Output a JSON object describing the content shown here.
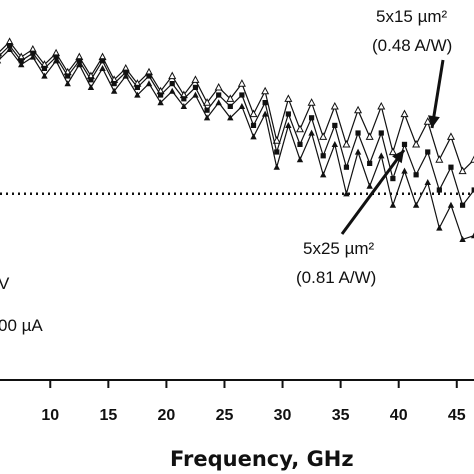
{
  "chart_data": {
    "type": "line",
    "xlabel": "Frequency, GHz",
    "xlim": [
      5.5,
      47
    ],
    "ylim": [
      0,
      1
    ],
    "x_ticks": [
      "10",
      "15",
      "20",
      "25",
      "30",
      "35",
      "40",
      "45"
    ],
    "reference_level": 0.49,
    "grid": false,
    "series": [
      {
        "name": "5x15 µm²",
        "marker": "open-triangle",
        "points": [
          [
            5.5,
            0.86
          ],
          [
            6.5,
            0.89
          ],
          [
            7.5,
            0.85
          ],
          [
            8.5,
            0.87
          ],
          [
            9.5,
            0.83
          ],
          [
            10.5,
            0.86
          ],
          [
            11.5,
            0.81
          ],
          [
            12.5,
            0.85
          ],
          [
            13.5,
            0.8
          ],
          [
            14.5,
            0.85
          ],
          [
            15.5,
            0.79
          ],
          [
            16.5,
            0.82
          ],
          [
            17.5,
            0.78
          ],
          [
            18.5,
            0.81
          ],
          [
            19.5,
            0.76
          ],
          [
            20.5,
            0.8
          ],
          [
            21.5,
            0.75
          ],
          [
            22.5,
            0.79
          ],
          [
            23.5,
            0.73
          ],
          [
            24.5,
            0.77
          ],
          [
            25.5,
            0.74
          ],
          [
            26.5,
            0.78
          ],
          [
            27.5,
            0.7
          ],
          [
            28.5,
            0.76
          ],
          [
            29.5,
            0.63
          ],
          [
            30.5,
            0.74
          ],
          [
            31.5,
            0.66
          ],
          [
            32.5,
            0.73
          ],
          [
            33.5,
            0.64
          ],
          [
            34.5,
            0.72
          ],
          [
            35.5,
            0.62
          ],
          [
            36.5,
            0.71
          ],
          [
            37.5,
            0.64
          ],
          [
            38.5,
            0.72
          ],
          [
            39.5,
            0.6
          ],
          [
            40.5,
            0.7
          ],
          [
            41.5,
            0.62
          ],
          [
            42.5,
            0.68
          ],
          [
            43.5,
            0.58
          ],
          [
            44.5,
            0.64
          ],
          [
            45.5,
            0.55
          ],
          [
            46.5,
            0.58
          ]
        ]
      },
      {
        "name": "",
        "marker": "filled-square",
        "points": [
          [
            5.5,
            0.85
          ],
          [
            6.5,
            0.88
          ],
          [
            7.5,
            0.84
          ],
          [
            8.5,
            0.86
          ],
          [
            9.5,
            0.82
          ],
          [
            10.5,
            0.85
          ],
          [
            11.5,
            0.8
          ],
          [
            12.5,
            0.84
          ],
          [
            13.5,
            0.79
          ],
          [
            14.5,
            0.84
          ],
          [
            15.5,
            0.78
          ],
          [
            16.5,
            0.81
          ],
          [
            17.5,
            0.77
          ],
          [
            18.5,
            0.8
          ],
          [
            19.5,
            0.75
          ],
          [
            20.5,
            0.78
          ],
          [
            21.5,
            0.74
          ],
          [
            22.5,
            0.77
          ],
          [
            23.5,
            0.71
          ],
          [
            24.5,
            0.75
          ],
          [
            25.5,
            0.72
          ],
          [
            26.5,
            0.75
          ],
          [
            27.5,
            0.67
          ],
          [
            28.5,
            0.73
          ],
          [
            29.5,
            0.6
          ],
          [
            30.5,
            0.7
          ],
          [
            31.5,
            0.62
          ],
          [
            32.5,
            0.69
          ],
          [
            33.5,
            0.59
          ],
          [
            34.5,
            0.67
          ],
          [
            35.5,
            0.56
          ],
          [
            36.5,
            0.65
          ],
          [
            37.5,
            0.57
          ],
          [
            38.5,
            0.65
          ],
          [
            39.5,
            0.53
          ],
          [
            40.5,
            0.62
          ],
          [
            41.5,
            0.54
          ],
          [
            42.5,
            0.6
          ],
          [
            43.5,
            0.5
          ],
          [
            44.5,
            0.56
          ],
          [
            45.5,
            0.46
          ],
          [
            46.5,
            0.5
          ]
        ]
      },
      {
        "name": "5x25 µm²",
        "marker": "filled-triangle",
        "points": [
          [
            5.5,
            0.84
          ],
          [
            6.5,
            0.87
          ],
          [
            7.5,
            0.83
          ],
          [
            8.5,
            0.85
          ],
          [
            9.5,
            0.8
          ],
          [
            10.5,
            0.84
          ],
          [
            11.5,
            0.78
          ],
          [
            12.5,
            0.83
          ],
          [
            13.5,
            0.77
          ],
          [
            14.5,
            0.82
          ],
          [
            15.5,
            0.76
          ],
          [
            16.5,
            0.8
          ],
          [
            17.5,
            0.75
          ],
          [
            18.5,
            0.78
          ],
          [
            19.5,
            0.73
          ],
          [
            20.5,
            0.76
          ],
          [
            21.5,
            0.72
          ],
          [
            22.5,
            0.75
          ],
          [
            23.5,
            0.69
          ],
          [
            24.5,
            0.73
          ],
          [
            25.5,
            0.69
          ],
          [
            26.5,
            0.72
          ],
          [
            27.5,
            0.64
          ],
          [
            28.5,
            0.7
          ],
          [
            29.5,
            0.56
          ],
          [
            30.5,
            0.67
          ],
          [
            31.5,
            0.58
          ],
          [
            32.5,
            0.65
          ],
          [
            33.5,
            0.54
          ],
          [
            34.5,
            0.62
          ],
          [
            35.5,
            0.49
          ],
          [
            36.5,
            0.6
          ],
          [
            37.5,
            0.51
          ],
          [
            38.5,
            0.59
          ],
          [
            39.5,
            0.46
          ],
          [
            40.5,
            0.55
          ],
          [
            41.5,
            0.46
          ],
          [
            42.5,
            0.52
          ],
          [
            43.5,
            0.4
          ],
          [
            44.5,
            0.46
          ],
          [
            45.5,
            0.37
          ],
          [
            46.5,
            0.38
          ]
        ]
      }
    ],
    "annotations": [
      {
        "id": "top",
        "line1": "5x15 µm²",
        "line2": "(0.48 A/W)"
      },
      {
        "id": "bottom",
        "line1": "5x25 µm²",
        "line2": "(0.81 A/W)"
      },
      {
        "id": "left-a",
        "text": "V"
      },
      {
        "id": "left-b",
        "text": "00 µA"
      }
    ]
  }
}
